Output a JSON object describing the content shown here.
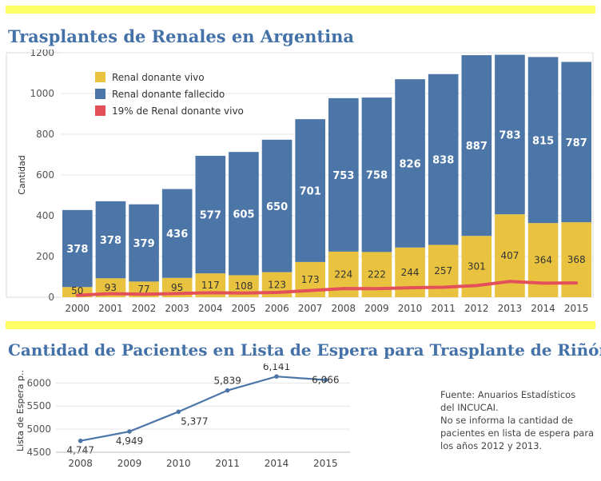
{
  "page": {
    "title1": "Trasplantes de Renales en Argentina",
    "title2": "Cantidad de Pacientes en Lista de Espera para Trasplante de Riñón",
    "note": [
      "Fuente: Anuarios Estadísticos",
      "del INCUCAI.",
      "No se informa la cantidad de",
      "pacientes en lista de espera para",
      "los años 2012 y 2013."
    ]
  },
  "chart_data": [
    {
      "type": "bar",
      "stacked": true,
      "title": "Trasplantes de Renales en Argentina",
      "ylabel": "Cantidad",
      "xlabel": "",
      "ylim": [
        0,
        1200
      ],
      "yticks": [
        0,
        200,
        400,
        600,
        800,
        1000,
        1200
      ],
      "grid": true,
      "legend": "top-left",
      "categories": [
        "2000",
        "2001",
        "2002",
        "2003",
        "2004",
        "2005",
        "2006",
        "2007",
        "2008",
        "2009",
        "2010",
        "2011",
        "2012",
        "2013",
        "2014",
        "2015"
      ],
      "series": [
        {
          "name": "Renal donante vivo",
          "color": "#e9c340",
          "values": [
            50,
            93,
            77,
            95,
            117,
            108,
            123,
            173,
            224,
            222,
            244,
            257,
            301,
            407,
            364,
            368
          ]
        },
        {
          "name": "Renal donante fallecido",
          "color": "#4c76a8",
          "values": [
            378,
            378,
            379,
            436,
            577,
            605,
            650,
            701,
            753,
            758,
            826,
            838,
            887,
            783,
            815,
            787
          ]
        },
        {
          "name": "19% de Renal donante vivo",
          "color": "#e4505a",
          "type": "line",
          "values": [
            9.5,
            17.7,
            14.6,
            18.1,
            22.2,
            20.5,
            23.4,
            32.9,
            42.6,
            42.2,
            46.4,
            48.8,
            57.2,
            77.3,
            69.2,
            69.9
          ]
        }
      ]
    },
    {
      "type": "line",
      "title": "Cantidad de Pacientes en Lista de Espera para Trasplante de Riñón",
      "ylabel": "Lista de Espera p..",
      "xlabel": "",
      "ylim": [
        4500,
        6300
      ],
      "yticks": [
        4500,
        5000,
        5500,
        6000
      ],
      "grid": true,
      "color": "#4c76a8",
      "categories": [
        "2008",
        "2009",
        "2010",
        "2011",
        "2014",
        "2015"
      ],
      "values": [
        4747,
        4949,
        5377,
        5839,
        6141,
        6066
      ],
      "labels": [
        "4,747",
        "4,949",
        "5,377",
        "5,839",
        "6,141",
        "6,066"
      ]
    }
  ]
}
